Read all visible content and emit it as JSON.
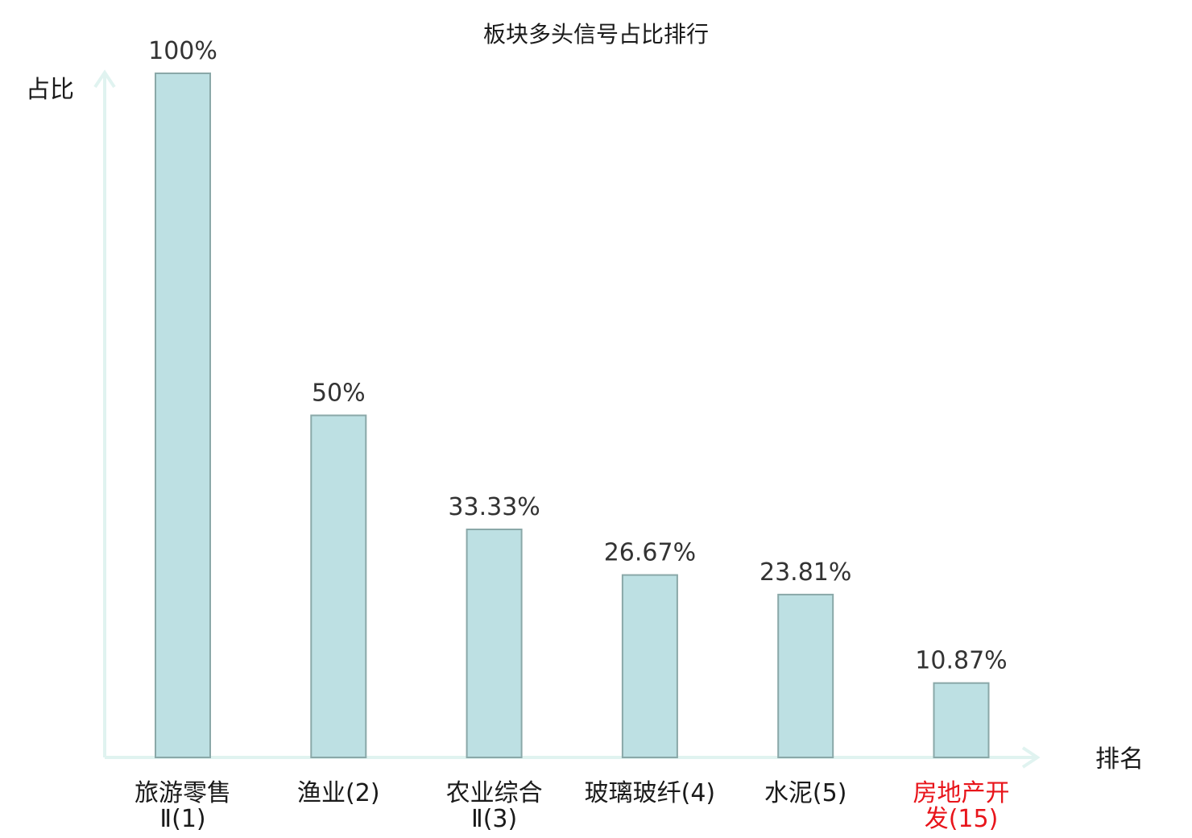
{
  "chart_data": {
    "type": "bar",
    "title": "板块多头信号占比排行",
    "ylabel": "占比",
    "xlabel": "排名",
    "ylim": [
      0,
      100
    ],
    "grid": false,
    "legend": "none",
    "categories": [
      {
        "lines": [
          "旅游零售",
          "Ⅱ(1)"
        ],
        "highlight": false
      },
      {
        "lines": [
          "渔业(2)"
        ],
        "highlight": false
      },
      {
        "lines": [
          "农业综合",
          "Ⅱ(3)"
        ],
        "highlight": false
      },
      {
        "lines": [
          "玻璃玻纤(4)"
        ],
        "highlight": false
      },
      {
        "lines": [
          "水泥(5)"
        ],
        "highlight": false
      },
      {
        "lines": [
          "房地产开",
          "发(15)"
        ],
        "highlight": true
      }
    ],
    "values": [
      100,
      50,
      33.33,
      26.67,
      23.81,
      10.87
    ],
    "value_labels": [
      "100%",
      "50%",
      "33.33%",
      "26.67%",
      "23.81%",
      "10.87%"
    ]
  },
  "colors": {
    "bar_fill": "#bde0e3",
    "bar_stroke": "#8aa8a8",
    "axis": "#e0f3f0",
    "text": "#1a1a1a",
    "highlight_text": "#e8151b"
  }
}
